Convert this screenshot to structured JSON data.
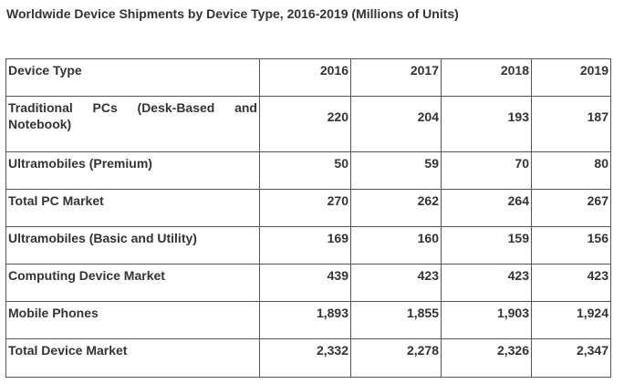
{
  "title": "Worldwide Device Shipments by Device Type, 2016-2019 (Millions of Units)",
  "table": {
    "headers": [
      "Device Type",
      "2016",
      "2017",
      "2018",
      "2019"
    ],
    "rows": [
      {
        "label": "Traditional PCs (Desk-Based and Notebook)",
        "values": [
          "220",
          "204",
          "193",
          "187"
        ]
      },
      {
        "label": "Ultramobiles (Premium)",
        "values": [
          "50",
          "59",
          "70",
          "80"
        ]
      },
      {
        "label": "Total PC Market",
        "values": [
          "270",
          "262",
          "264",
          "267"
        ]
      },
      {
        "label": "Ultramobiles (Basic and Utility)",
        "values": [
          "169",
          "160",
          "159",
          "156"
        ]
      },
      {
        "label": "Computing Device Market",
        "values": [
          "439",
          "423",
          "423",
          "423"
        ]
      },
      {
        "label": "Mobile Phones",
        "values": [
          "1,893",
          "1,855",
          "1,903",
          "1,924"
        ]
      },
      {
        "label": "Total Device Market",
        "values": [
          "2,332",
          "2,278",
          "2,326",
          "2,347"
        ]
      }
    ]
  }
}
